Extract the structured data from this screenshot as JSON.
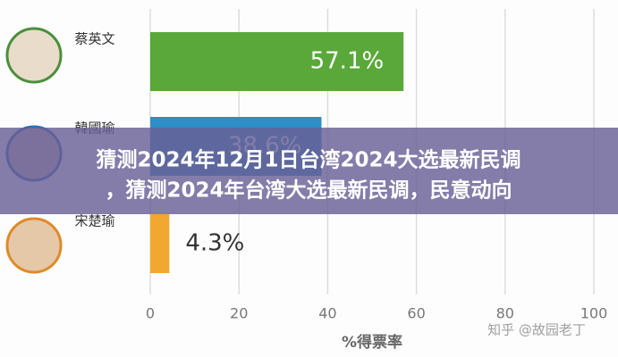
{
  "chart_data": {
    "type": "bar",
    "orientation": "horizontal",
    "categories": [
      "蔡英文",
      "韓國瑜",
      "宋楚瑜"
    ],
    "values": [
      57.1,
      38.6,
      4.3
    ],
    "value_labels": [
      "57.1%",
      "38.6%",
      "4.3%"
    ],
    "colors": [
      "#5aa83a",
      "#2e8fc7",
      "#f2a830"
    ],
    "xlim": [
      0,
      100
    ],
    "xticks": [
      0,
      20,
      40,
      60,
      80,
      100
    ],
    "xlabel": "%得票率",
    "grid": true
  },
  "banner": {
    "lines": [
      "猜测2024年12月1日台湾2024大选最新民调",
      "，猜测2024年台湾大选最新民调，民意动向"
    ]
  },
  "watermark": "知乎 @故园老丁"
}
